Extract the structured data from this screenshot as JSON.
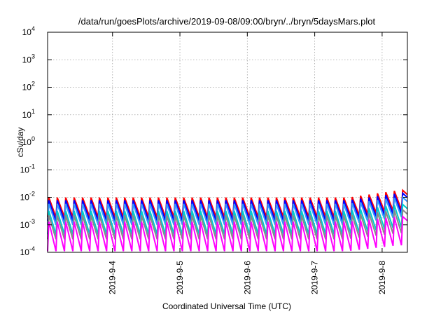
{
  "chart_data": {
    "type": "line",
    "title": "/data/run/goesPlots/archive/2019-09-08/09:00/bryn/../bryn/5daysMars.plot",
    "xlabel": "Coordinated Universal Time (UTC)",
    "ylabel": "cSv/day",
    "yscale": "log",
    "ylim": [
      0.0001,
      10000
    ],
    "y_ticks": [
      {
        "mant": "10",
        "exp": "-4",
        "value": 0.0001
      },
      {
        "mant": "10",
        "exp": "-3",
        "value": 0.001
      },
      {
        "mant": "10",
        "exp": "-2",
        "value": 0.01
      },
      {
        "mant": "10",
        "exp": "-1",
        "value": 0.1
      },
      {
        "mant": "10",
        "exp": "0",
        "value": 1
      },
      {
        "mant": "10",
        "exp": "1",
        "value": 10
      },
      {
        "mant": "10",
        "exp": "2",
        "value": 100
      },
      {
        "mant": "10",
        "exp": "3",
        "value": 1000
      },
      {
        "mant": "10",
        "exp": "4",
        "value": 10000
      }
    ],
    "xlim": [
      "2019-09-03T00:53",
      "2019-09-08T09:00"
    ],
    "x_ticks": [
      "2019-9-4",
      "2019-9-5",
      "2019-9-6",
      "2019-9-7",
      "2019-9-8"
    ],
    "grid": true,
    "legend": "none",
    "oscillation": {
      "period_hours": 3,
      "count": 43
    },
    "series": [
      {
        "color": "#ff0000",
        "peak": 0.0098,
        "trough": 0.0019,
        "late_peak": 0.018,
        "late_trough": 0.0035
      },
      {
        "color": "#0000ff",
        "peak": 0.0078,
        "trough": 0.0014,
        "late_peak": 0.014,
        "late_trough": 0.0026
      },
      {
        "color": "#3399ff",
        "peak": 0.0058,
        "trough": 0.001,
        "late_peak": 0.01,
        "late_trough": 0.0019
      },
      {
        "color": "#00cccc",
        "peak": 0.0032,
        "trough": 0.00045,
        "late_peak": 0.0055,
        "late_trough": 0.0008
      },
      {
        "color": "#888888",
        "peak": 0.0022,
        "trough": 0.0003,
        "late_peak": 0.0035,
        "late_trough": 0.0005
      },
      {
        "color": "#ff00ff",
        "peak": 0.0013,
        "trough": 0.00011,
        "late_peak": 0.002,
        "late_trough": 0.00018
      }
    ]
  }
}
